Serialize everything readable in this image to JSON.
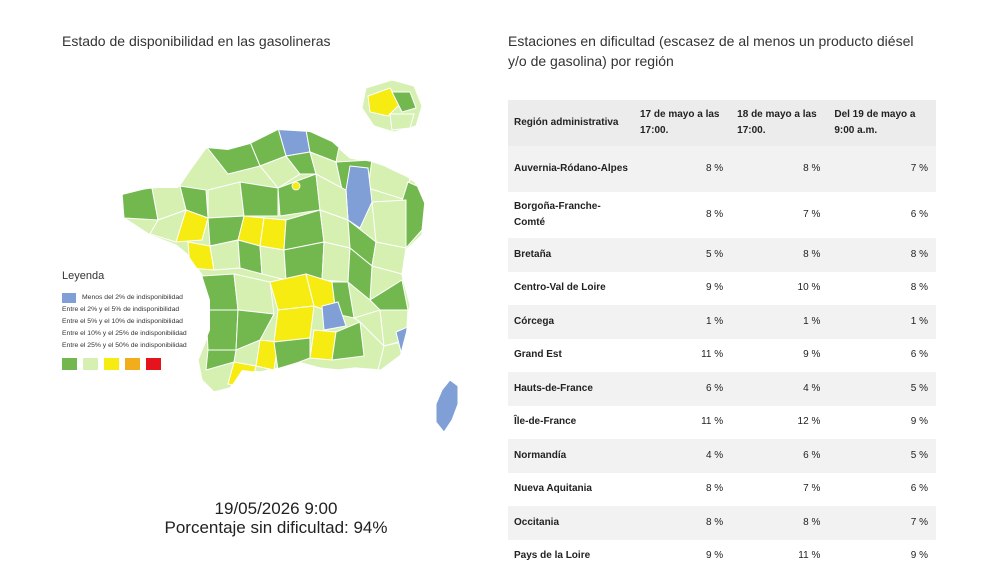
{
  "map_section": {
    "title": "Estado de disponibilidad en las gasolineras",
    "timestamp": "19/05/2026 9:00",
    "summary": "Porcentaje sin dificultad: 94%"
  },
  "legend": {
    "title": "Leyenda",
    "items": [
      {
        "label": "Menos del 2% de indisponibilidad",
        "color": "#7f9fd6"
      },
      {
        "label": "Entre el 2% y el 5% de indisponibilidad",
        "color": ""
      },
      {
        "label": "Entre el 5% y el 10% de indisponibilidad",
        "color": ""
      },
      {
        "label": "Entre el 10% y el 25% de indisponibilidad",
        "color": ""
      },
      {
        "label": "Entre el 25% y el 50% de indisponibilidad",
        "color": ""
      }
    ],
    "swatches": [
      "#72b84e",
      "#d6f0b2",
      "#f6ec12",
      "#f2ad1c",
      "#e5141c"
    ]
  },
  "table_section": {
    "title": "Estaciones en dificultad (escasez de al menos un producto diésel y/o de gasolina) por región",
    "headers": [
      "Región administrativa",
      "17 de mayo a las 17:00.",
      "18 de mayo a las 17:00.",
      "Del 19 de mayo a 9:00 a.m."
    ],
    "rows": [
      {
        "region": "Auvernia-Ródano-Alpes",
        "d17": "8 %",
        "d18": "8 %",
        "d19": "7 %"
      },
      {
        "region": "Borgoña-Franche-Comté",
        "d17": "8 %",
        "d18": "7 %",
        "d19": "6 %"
      },
      {
        "region": "Bretaña",
        "d17": "5 %",
        "d18": "8 %",
        "d19": "8 %"
      },
      {
        "region": "Centro-Val de Loire",
        "d17": "9 %",
        "d18": "10 %",
        "d19": "8 %"
      },
      {
        "region": "Córcega",
        "d17": "1 %",
        "d18": "1 %",
        "d19": "1 %"
      },
      {
        "region": "Grand Est",
        "d17": "11 %",
        "d18": "9 %",
        "d19": "6 %"
      },
      {
        "region": "Hauts-de-France",
        "d17": "6 %",
        "d18": "4 %",
        "d19": "5 %"
      },
      {
        "region": "Île-de-France",
        "d17": "11 %",
        "d18": "12 %",
        "d19": "9 %"
      },
      {
        "region": "Normandía",
        "d17": "4 %",
        "d18": "6 %",
        "d19": "5 %"
      },
      {
        "region": "Nueva Aquitania",
        "d17": "8 %",
        "d18": "7 %",
        "d19": "6 %"
      },
      {
        "region": "Occitania",
        "d17": "8 %",
        "d18": "8 %",
        "d19": "7 %"
      },
      {
        "region": "Pays de la Loire",
        "d17": "9 %",
        "d18": "11 %",
        "d19": "9 %"
      }
    ]
  },
  "colors": {
    "green": "#72b84e",
    "light_green": "#d6f0b2",
    "yellow": "#f6ec12",
    "blue": "#7f9fd6",
    "table_header_bg": "#ececec"
  }
}
